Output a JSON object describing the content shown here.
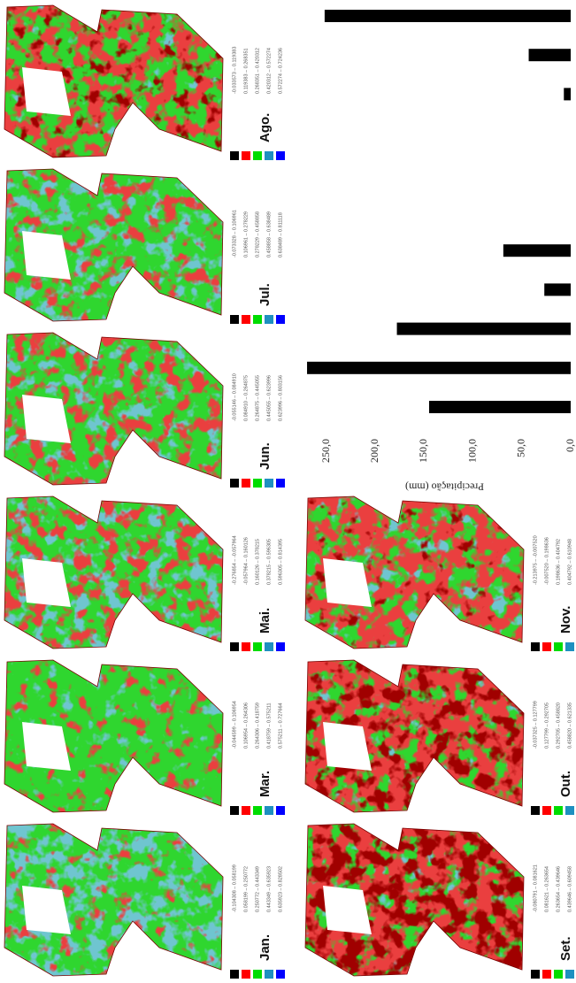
{
  "maps": [
    {
      "label": "Jan.",
      "legend": [
        "-0.104308 – 0.058199",
        "0.058199 – 0.250772",
        "0.250772 – 0.443349",
        "0.443349 – 0.635923",
        "0.635923 – 0.828502"
      ]
    },
    {
      "label": "Mar.",
      "legend": [
        "-0.044599 – 0.106954",
        "0.106954 – 0.264306",
        "0.264306 – 0.418759",
        "0.418759 – 0.575211",
        "0.575211 – 0.727664"
      ]
    },
    {
      "label": "Mai.",
      "legend": [
        "-0.276854 – -0.057964",
        "-0.057964 – 0.160126",
        "0.160126 – 0.378215",
        "0.378215 – 0.596305",
        "0.596305 – 0.814395"
      ]
    },
    {
      "label": "Jun.",
      "legend": [
        "-0.055146 – 0.084910",
        "0.084910 – 0.264875",
        "0.264875 – 0.445055",
        "0.445055 – 0.623996",
        "0.623996 – 0.803156"
      ]
    },
    {
      "label": "Jul.",
      "legend": [
        "-0.073328 – 0.106961",
        "0.106961 – 0.278229",
        "0.278229 – 0.458858",
        "0.458858 – 0.638489",
        "0.638489 – 0.811118"
      ]
    },
    {
      "label": "Ago.",
      "legend": [
        "-0.033573 – 0.119383",
        "0.119383 – 0.268351",
        "0.268351 – 0.420312",
        "0.420312 – 0.572274",
        "0.572274 – 0.724236"
      ]
    },
    {
      "label": "Set.",
      "legend": [
        "-0.080791 – 0.081621",
        "0.081621 – 0.263654",
        "0.263654 – 0.439646",
        "0.439646 – 0.609458"
      ]
    },
    {
      "label": "Out.",
      "legend": [
        "-0.037325 – 0.127799",
        "0.127799 – 0.292705",
        "0.292705 – 0.458820",
        "0.458820 – 0.621335"
      ]
    },
    {
      "label": "Nov.",
      "legend": [
        "-0.213975 – -0.007520",
        "-0.007520 – 0.198636",
        "0.198636 – 0.404792",
        "0.404792 – 0.610948"
      ]
    }
  ],
  "legend_colors": [
    "#000000",
    "#ff0000",
    "#00dd00",
    "#1e90c0",
    "#0000ff"
  ],
  "chart_data": {
    "type": "bar",
    "y_label": "Precipitação (mm)",
    "categories": [
      null,
      null,
      null,
      null,
      null,
      null,
      null,
      null,
      null,
      null,
      null
    ],
    "values": [
      145,
      270,
      178,
      27,
      69,
      0,
      0,
      0,
      7,
      43,
      252
    ],
    "color": "#000000",
    "ylim": [
      0,
      280
    ],
    "yticks": [
      {
        "value": 0,
        "label": "0,0"
      },
      {
        "value": 50,
        "label": "50,0"
      },
      {
        "value": 100,
        "label": "100,0"
      },
      {
        "value": 150,
        "label": "150,0"
      },
      {
        "value": 200,
        "label": "200,0"
      },
      {
        "value": 250,
        "label": "250,0"
      }
    ],
    "grid": false
  }
}
